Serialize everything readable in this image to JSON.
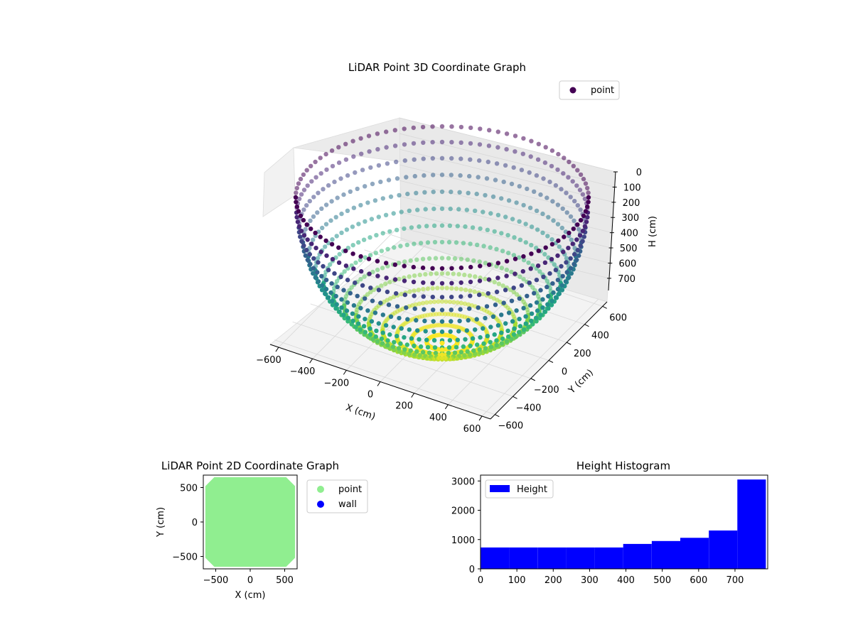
{
  "chart_data": [
    {
      "type": "scatter",
      "projection": "3d",
      "title": "LiDAR Point 3D Coordinate Graph",
      "xlabel": "X (cm)",
      "ylabel": "Y (cm)",
      "zlabel": "H (cm)",
      "xlim": [
        -650,
        650
      ],
      "ylim": [
        -650,
        650
      ],
      "zlim": [
        780,
        0
      ],
      "zaxis_inverted": true,
      "xticks": [
        "−600",
        "−400",
        "−200",
        "0",
        "200",
        "400",
        "600"
      ],
      "yticks": [
        "−600",
        "−400",
        "−200",
        "0",
        "200",
        "400",
        "600"
      ],
      "zticks": [
        "0",
        "100",
        "200",
        "300",
        "400",
        "500",
        "600",
        "700"
      ],
      "colormap": "viridis",
      "grid": true,
      "legend": {
        "position": "upper-right",
        "entries": [
          "point"
        ]
      },
      "series": [
        {
          "name": "point",
          "shape": "hemispherical bowl",
          "radius_cm": 650,
          "max_depth_cm": 780,
          "marker_color": "#440154"
        }
      ]
    },
    {
      "type": "scatter",
      "title": "LiDAR Point 2D Coordinate Graph",
      "xlabel": "X (cm)",
      "ylabel": "Y (cm)",
      "xlim": [
        -680,
        680
      ],
      "ylim": [
        -680,
        680
      ],
      "xticks": [
        "−500",
        "0",
        "500"
      ],
      "yticks": [
        "−500",
        "0",
        "500"
      ],
      "legend": {
        "position": "outside-right",
        "entries": [
          "point",
          "wall"
        ]
      },
      "series": [
        {
          "name": "point",
          "color": "#90ee90",
          "region": "octagon",
          "half_width_cm": 650,
          "corner_cut_cm": 130
        },
        {
          "name": "wall",
          "color": "#0000ff"
        }
      ]
    },
    {
      "type": "bar",
      "title": "Height Histogram",
      "xlabel": "",
      "ylabel": "",
      "xlim": [
        0,
        790
      ],
      "ylim": [
        0,
        3200
      ],
      "xticks": [
        "0",
        "100",
        "200",
        "300",
        "400",
        "500",
        "600",
        "700"
      ],
      "yticks": [
        "0",
        "1000",
        "2000",
        "3000"
      ],
      "color": "#0000ff",
      "legend": {
        "position": "upper-left",
        "entries": [
          "Height"
        ]
      },
      "bins": [
        {
          "start": 0,
          "end": 78.5,
          "count": 730
        },
        {
          "start": 78.5,
          "end": 157,
          "count": 730
        },
        {
          "start": 157,
          "end": 235.5,
          "count": 730
        },
        {
          "start": 235.5,
          "end": 314,
          "count": 730
        },
        {
          "start": 314,
          "end": 392.5,
          "count": 730
        },
        {
          "start": 392.5,
          "end": 471,
          "count": 850
        },
        {
          "start": 471,
          "end": 549.5,
          "count": 950
        },
        {
          "start": 549.5,
          "end": 628,
          "count": 1060
        },
        {
          "start": 628,
          "end": 706.5,
          "count": 1310
        },
        {
          "start": 706.5,
          "end": 785,
          "count": 3050
        }
      ]
    }
  ]
}
